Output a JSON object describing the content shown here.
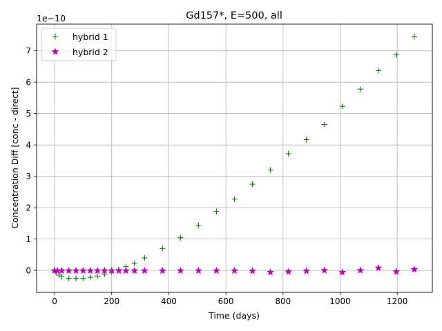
{
  "chart_data": {
    "type": "scatter",
    "title": "Gd157*, E=500, all",
    "xlabel": "Time (days)",
    "ylabel": "Concentration Diff [conc - direct]",
    "y_offset_label": "1e−10",
    "xlim": [
      -63,
      1323
    ],
    "ylim": [
      -7e-11,
      7.85e-10
    ],
    "xticks": [
      0,
      200,
      400,
      600,
      800,
      1000,
      1200
    ],
    "xtick_labels": [
      "0",
      "200",
      "400",
      "600",
      "800",
      "1000",
      "1200"
    ],
    "yticks": [
      0,
      1e-10,
      2e-10,
      3e-10,
      4e-10,
      5e-10,
      6e-10,
      7e-10
    ],
    "ytick_labels": [
      "0",
      "1",
      "2",
      "3",
      "4",
      "5",
      "6",
      "7"
    ],
    "grid": true,
    "legend_position": "top-left",
    "series": [
      {
        "name": "hybrid 1",
        "marker": "plus",
        "color": "#008000",
        "points": [
          [
            0,
            0
          ],
          [
            5,
            -5e-12
          ],
          [
            15,
            -1.5e-11
          ],
          [
            25,
            -2e-11
          ],
          [
            50,
            -2.5e-11
          ],
          [
            75,
            -2.5e-11
          ],
          [
            100,
            -2.5e-11
          ],
          [
            125,
            -2.2e-11
          ],
          [
            150,
            -1.8e-11
          ],
          [
            175,
            -1.2e-11
          ],
          [
            200,
            -5e-12
          ],
          [
            225,
            3e-12
          ],
          [
            250,
            1.2e-11
          ],
          [
            280,
            2.3e-11
          ],
          [
            315,
            4e-11
          ],
          [
            378,
            7e-11
          ],
          [
            441,
            1.04e-10
          ],
          [
            504,
            1.44e-10
          ],
          [
            567,
            1.88e-10
          ],
          [
            630,
            2.27e-10
          ],
          [
            693,
            2.75e-10
          ],
          [
            756,
            3.2e-10
          ],
          [
            819,
            3.72e-10
          ],
          [
            882,
            4.17e-10
          ],
          [
            945,
            4.65e-10
          ],
          [
            1008,
            5.23e-10
          ],
          [
            1071,
            5.78e-10
          ],
          [
            1134,
            6.37e-10
          ],
          [
            1197,
            6.87e-10
          ],
          [
            1260,
            7.45e-10
          ]
        ]
      },
      {
        "name": "hybrid 2",
        "marker": "star",
        "color": "#bf00bf",
        "points": [
          [
            0,
            -1e-12
          ],
          [
            10,
            -1e-12
          ],
          [
            25,
            -1e-12
          ],
          [
            50,
            -1e-12
          ],
          [
            75,
            -1e-12
          ],
          [
            100,
            -1e-12
          ],
          [
            125,
            -1e-12
          ],
          [
            150,
            -1e-12
          ],
          [
            175,
            -1e-12
          ],
          [
            200,
            -1e-12
          ],
          [
            225,
            -1e-12
          ],
          [
            250,
            -1e-12
          ],
          [
            280,
            -1e-12
          ],
          [
            315,
            -1e-12
          ],
          [
            378,
            -1e-12
          ],
          [
            441,
            -1e-12
          ],
          [
            504,
            -1e-12
          ],
          [
            567,
            -1e-12
          ],
          [
            630,
            -1e-12
          ],
          [
            693,
            -2e-12
          ],
          [
            756,
            -6e-12
          ],
          [
            819,
            -4e-12
          ],
          [
            882,
            -2e-12
          ],
          [
            945,
            0.0
          ],
          [
            1008,
            -6e-12
          ],
          [
            1071,
            0.0
          ],
          [
            1134,
            8e-12
          ],
          [
            1197,
            -4e-12
          ],
          [
            1260,
            3e-12
          ]
        ]
      }
    ]
  }
}
